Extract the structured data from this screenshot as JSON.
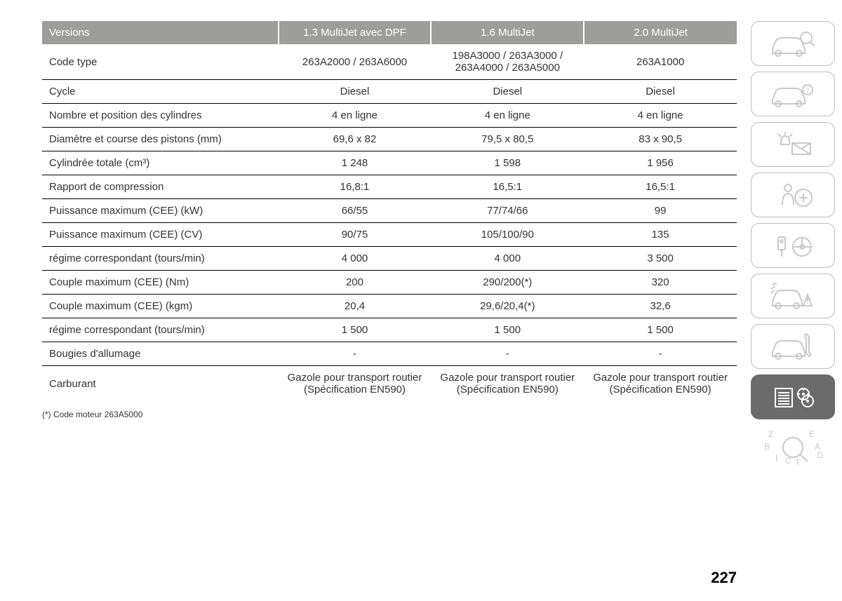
{
  "table": {
    "headers": [
      "Versions",
      "1.3 MultiJet avec DPF",
      "1.6 MultiJet",
      "2.0 MultiJet"
    ],
    "rows": [
      {
        "label": "Code type",
        "c1": "263A2000 / 263A6000",
        "c2": "198A3000 / 263A3000 /\n263A4000 / 263A5000",
        "c3": "263A1000"
      },
      {
        "label": "Cycle",
        "c1": "Diesel",
        "c2": "Diesel",
        "c3": "Diesel"
      },
      {
        "label": "Nombre et position des cylindres",
        "c1": "4 en ligne",
        "c2": "4 en ligne",
        "c3": "4 en ligne"
      },
      {
        "label": "Diamètre et course des pistons (mm)",
        "c1": "69,6 x 82",
        "c2": "79,5 x 80,5",
        "c3": "83 x 90,5"
      },
      {
        "label": "Cylindrée totale (cm³)",
        "c1": "1 248",
        "c2": "1 598",
        "c3": "1 956"
      },
      {
        "label": "Rapport de compression",
        "c1": "16,8:1",
        "c2": "16,5:1",
        "c3": "16,5:1"
      },
      {
        "label": "Puissance maximum (CEE) (kW)",
        "c1": "66/55",
        "c2": "77/74/66",
        "c3": "99"
      },
      {
        "label": "Puissance maximum (CEE) (CV)",
        "c1": "90/75",
        "c2": "105/100/90",
        "c3": "135"
      },
      {
        "label": "régime correspondant (tours/min)",
        "c1": "4 000",
        "c2": "4 000",
        "c3": "3 500"
      },
      {
        "label": "Couple maximum (CEE) (Nm)",
        "c1": "200",
        "c2": "290/200(*)",
        "c3": "320"
      },
      {
        "label": "Couple maximum (CEE) (kgm)",
        "c1": "20,4",
        "c2": "29,6/20,4(*)",
        "c3": "32,6"
      },
      {
        "label": "régime correspondant (tours/min)",
        "c1": "1 500",
        "c2": "1 500",
        "c3": "1 500"
      },
      {
        "label": "Bougies d'allumage",
        "c1": "-",
        "c2": "-",
        "c3": "-"
      },
      {
        "label": "Carburant",
        "c1": "Gazole pour transport routier (Spécification EN590)",
        "c2": "Gazole pour transport routier (Spécification EN590)",
        "c3": "Gazole pour transport routier (Spécification EN590)"
      }
    ],
    "column_widths": [
      "34%",
      "22%",
      "22%",
      "22%"
    ]
  },
  "footnote": "(*) Code moteur 263A5000",
  "page_number": "227",
  "sidebar": {
    "tabs": [
      {
        "name": "knowing-vehicle-icon",
        "active": false
      },
      {
        "name": "dashboard-icon",
        "active": false
      },
      {
        "name": "warning-lights-icon",
        "active": false
      },
      {
        "name": "safety-icon",
        "active": false
      },
      {
        "name": "starting-driving-icon",
        "active": false
      },
      {
        "name": "emergency-icon",
        "active": false
      },
      {
        "name": "maintenance-icon",
        "active": false
      },
      {
        "name": "specifications-icon",
        "active": true
      },
      {
        "name": "index-icon",
        "active": false
      }
    ],
    "index_letters": [
      "Z",
      "E",
      "B",
      "A",
      "I",
      "D",
      "C",
      "T"
    ]
  },
  "colors": {
    "header_bg": "#9d9d9c",
    "header_text": "#ffffff",
    "row_border": "#000000",
    "icon_stroke": "#c9c9c9",
    "active_tab_bg": "#6b6b6b"
  }
}
